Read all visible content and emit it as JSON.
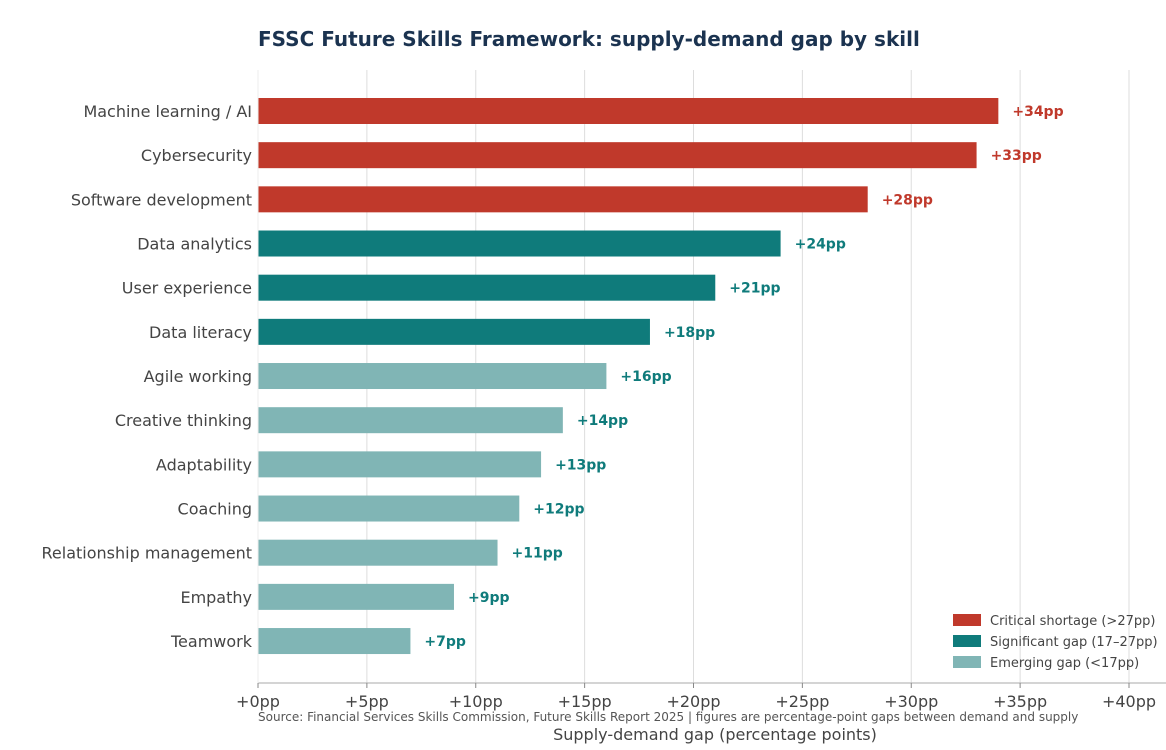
{
  "chart_data": {
    "type": "bar",
    "orientation": "horizontal",
    "title": "FSSC Future Skills Framework: supply-demand gap by skill",
    "xlabel": "Supply-demand gap (percentage points)",
    "ylabel": "",
    "xlim": [
      0,
      40
    ],
    "xticks": [
      0,
      5,
      10,
      15,
      20,
      25,
      30,
      35,
      40
    ],
    "xtick_labels": [
      "+0pp",
      "+5pp",
      "+10pp",
      "+15pp",
      "+20pp",
      "+25pp",
      "+30pp",
      "+35pp",
      "+40pp"
    ],
    "grid": "vertical",
    "legend_position": "bottom-right",
    "categories": [
      "Machine learning / AI",
      "Cybersecurity",
      "Software development",
      "Data analytics",
      "User experience",
      "Data literacy",
      "Agile working",
      "Creative thinking",
      "Adaptability",
      "Coaching",
      "Relationship management",
      "Empathy",
      "Teamwork"
    ],
    "values": [
      34,
      33,
      28,
      24,
      21,
      18,
      16,
      14,
      13,
      12,
      11,
      9,
      7
    ],
    "value_labels": [
      "+34pp",
      "+33pp",
      "+28pp",
      "+24pp",
      "+21pp",
      "+18pp",
      "+16pp",
      "+14pp",
      "+13pp",
      "+12pp",
      "+11pp",
      "+9pp",
      "+7pp"
    ],
    "groups": [
      "critical",
      "critical",
      "critical",
      "significant",
      "significant",
      "significant",
      "emerging",
      "emerging",
      "emerging",
      "emerging",
      "emerging",
      "emerging",
      "emerging"
    ],
    "legend": [
      {
        "key": "critical",
        "label": "Critical shortage (>27pp)",
        "color": "#c0392b",
        "label_color": "#c0392b"
      },
      {
        "key": "significant",
        "label": "Significant gap (17–27pp)",
        "color": "#0f7b7b",
        "label_color": "#0f7b7b"
      },
      {
        "key": "emerging",
        "label": "Emerging gap (<17pp)",
        "color": "#80b5b5",
        "label_color": "#0f7b7b"
      }
    ],
    "source": "Source: Financial Services Skills Commission, Future Skills Report 2025  |  figures are percentage-point gaps between demand and supply"
  }
}
